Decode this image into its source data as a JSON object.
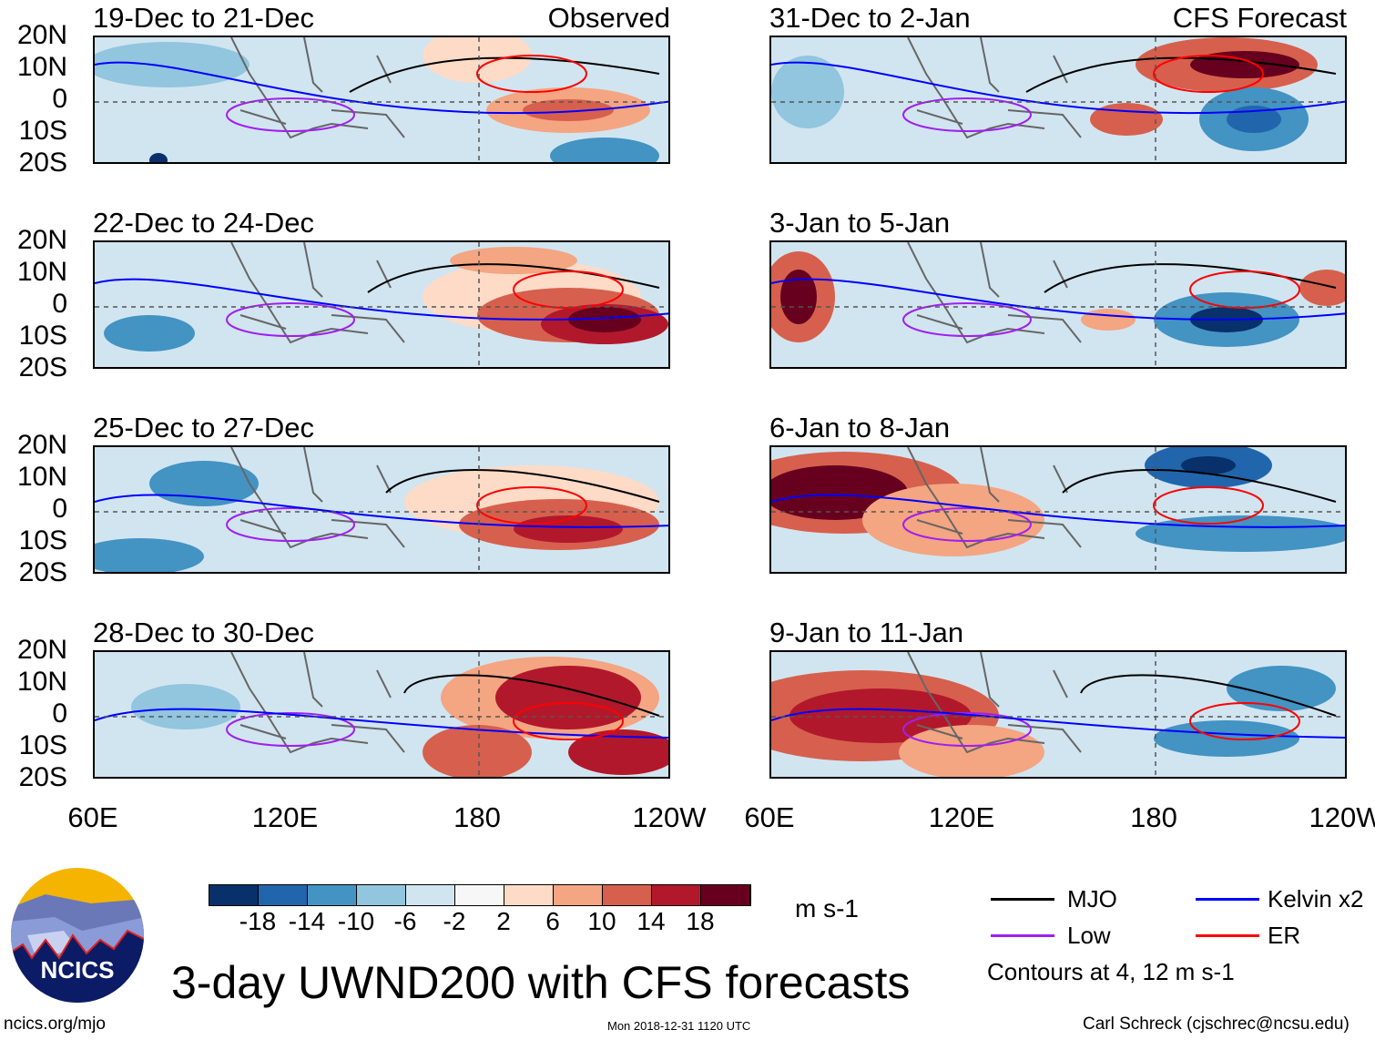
{
  "panels_left": [
    {
      "title": "19-Dec to 21-Dec",
      "tag": "Observed"
    },
    {
      "title": "22-Dec to 24-Dec",
      "tag": ""
    },
    {
      "title": "25-Dec to 27-Dec",
      "tag": ""
    },
    {
      "title": "28-Dec to 30-Dec",
      "tag": ""
    }
  ],
  "panels_right": [
    {
      "title": "31-Dec to 2-Jan",
      "tag": "CFS Forecast"
    },
    {
      "title": "3-Jan to 5-Jan",
      "tag": ""
    },
    {
      "title": "6-Jan to 8-Jan",
      "tag": ""
    },
    {
      "title": "9-Jan to 11-Jan",
      "tag": ""
    }
  ],
  "lat_labels": [
    "20N",
    "10N",
    "0",
    "10S",
    "20S"
  ],
  "lon_labels": [
    "60E",
    "120E",
    "180",
    "120W"
  ],
  "colorbar": {
    "colors": [
      "#08306b",
      "#2166ac",
      "#4393c3",
      "#92c5de",
      "#d1e5f0",
      "#f7f7f7",
      "#fddbc7",
      "#f4a582",
      "#d6604d",
      "#b2182b",
      "#67001f"
    ],
    "ticks": [
      "-18",
      "-14",
      "-10",
      "-6",
      "-2",
      "2",
      "6",
      "10",
      "14",
      "18"
    ],
    "units": "m s-1"
  },
  "legend": {
    "items": [
      {
        "label": "MJO",
        "color": "#000000"
      },
      {
        "label": "Kelvin x2",
        "color": "#0000ff"
      },
      {
        "label": "Low",
        "color": "#a020f0"
      },
      {
        "label": "ER",
        "color": "#ff0000"
      }
    ],
    "note": "Contours at 4, 12 m s-1"
  },
  "logo_text": "NCICS",
  "title": "3-day UWND200 with CFS forecasts",
  "footer": {
    "left": "ncics.org/mjo",
    "center": "Mon 2018-12-31 1120 UTC",
    "right": "Carl Schreck (cjschrec@ncsu.edu)"
  }
}
